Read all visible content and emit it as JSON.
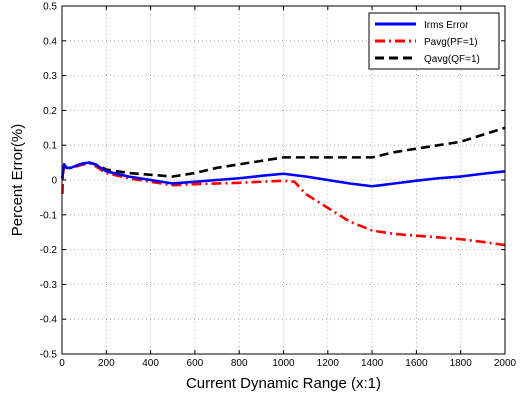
{
  "chart_data": {
    "type": "line",
    "title": "",
    "xlabel": "Current Dynamic Range (x:1)",
    "ylabel": "Percent Error(%)",
    "xlim": [
      0,
      2000
    ],
    "ylim": [
      -0.5,
      0.5
    ],
    "xticks": [
      0,
      200,
      400,
      600,
      800,
      1000,
      1200,
      1400,
      1600,
      1800,
      2000
    ],
    "yticks": [
      0.5,
      0.4,
      0.3,
      0.2,
      0.1,
      0,
      -0.1,
      -0.2,
      -0.3,
      -0.4,
      -0.5
    ],
    "xtick_labels": [
      "0",
      "200",
      "400",
      "600",
      "800",
      "1000",
      "1200",
      "1400",
      "1600",
      "1800",
      "2000"
    ],
    "ytick_labels": [
      "0.5",
      "0.4",
      "0.3",
      "0.2",
      "0.1",
      "0",
      "-0.1",
      "-0.2",
      "-0.3",
      "-0.4",
      "-0.5"
    ],
    "grid": true,
    "legend_position": "top-right",
    "series": [
      {
        "name": "Irms Error",
        "color": "#0000ff",
        "style": "solid",
        "x": [
          2,
          5,
          10,
          20,
          40,
          60,
          80,
          100,
          125,
          150,
          200,
          300,
          400,
          500,
          600,
          700,
          800,
          900,
          1000,
          1100,
          1200,
          1300,
          1400,
          1500,
          1600,
          1700,
          1800,
          1900,
          2000
        ],
        "y": [
          0.005,
          0.03,
          0.045,
          0.035,
          0.035,
          0.04,
          0.045,
          0.048,
          0.05,
          0.045,
          0.025,
          0.01,
          0.0,
          -0.01,
          -0.005,
          0.0,
          0.005,
          0.012,
          0.018,
          0.01,
          0.0,
          -0.01,
          -0.018,
          -0.01,
          -0.002,
          0.005,
          0.01,
          0.018,
          0.025
        ]
      },
      {
        "name": "Pavg(PF=1)",
        "color": "#ff0000",
        "style": "dashdot",
        "x": [
          2,
          5,
          10,
          20,
          40,
          60,
          80,
          100,
          125,
          150,
          200,
          300,
          400,
          500,
          600,
          700,
          800,
          900,
          1000,
          1050,
          1100,
          1200,
          1300,
          1400,
          1500,
          1600,
          1700,
          1800,
          1900,
          2000
        ],
        "y": [
          -0.04,
          0.02,
          0.04,
          0.035,
          0.035,
          0.038,
          0.042,
          0.045,
          0.047,
          0.04,
          0.02,
          0.005,
          -0.005,
          -0.015,
          -0.012,
          -0.01,
          -0.008,
          -0.005,
          -0.002,
          -0.005,
          -0.04,
          -0.08,
          -0.12,
          -0.145,
          -0.155,
          -0.16,
          -0.165,
          -0.17,
          -0.178,
          -0.187
        ]
      },
      {
        "name": "Qavg(QF=1)",
        "color": "#000000",
        "style": "dashed",
        "x": [
          2,
          5,
          10,
          20,
          40,
          60,
          80,
          100,
          125,
          150,
          200,
          300,
          400,
          500,
          600,
          700,
          800,
          900,
          1000,
          1100,
          1200,
          1300,
          1400,
          1500,
          1600,
          1700,
          1800,
          1900,
          2000
        ],
        "y": [
          0.005,
          0.03,
          0.045,
          0.035,
          0.035,
          0.04,
          0.045,
          0.048,
          0.05,
          0.045,
          0.03,
          0.02,
          0.015,
          0.01,
          0.02,
          0.035,
          0.045,
          0.055,
          0.065,
          0.065,
          0.065,
          0.065,
          0.065,
          0.08,
          0.09,
          0.1,
          0.11,
          0.13,
          0.15
        ]
      }
    ]
  }
}
